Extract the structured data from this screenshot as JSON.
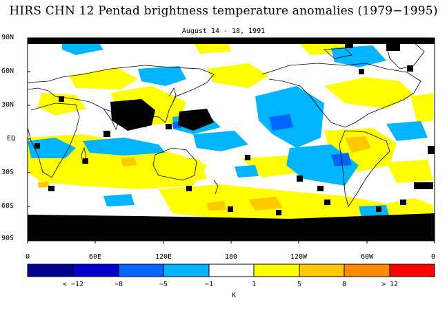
{
  "figure": {
    "title": "HIRS CHN 12 Pentad brightness temperature anomalies (1979−1995)",
    "subtitle": "August 14 - 18, 1991"
  },
  "map": {
    "projection": "equirectangular",
    "lon_range": [
      0,
      360
    ],
    "lat_range": [
      -90,
      90
    ],
    "y_ticks": [
      "90N",
      "60N",
      "30N",
      "EQ",
      "30S",
      "60S",
      "90S"
    ],
    "x_ticks": [
      "0",
      "60E",
      "120E",
      "180",
      "120W",
      "60W",
      "0"
    ]
  },
  "colorbar": {
    "unit": "K",
    "labels": [
      "< −12",
      "−8",
      "−5",
      "−1",
      "1",
      "5",
      "8",
      "> 12"
    ],
    "colors": [
      "#00008c",
      "#0000cd",
      "#0064ff",
      "#00b4ff",
      "#ffffff",
      "#ffff00",
      "#ffc800",
      "#ff8c00",
      "#ff0000"
    ]
  },
  "palette": {
    "missing": "#000000",
    "coast": "#000000"
  }
}
